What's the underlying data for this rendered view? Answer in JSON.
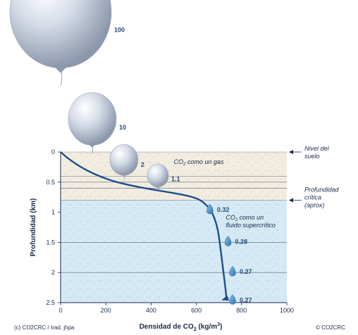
{
  "chart_data": {
    "type": "line",
    "xlabel_main": "Densidad de CO",
    "xlabel_sub": "2",
    "xlabel_tail": " (kg/m",
    "xlabel_sup": "3",
    "xlabel_end": ")",
    "ylabel": "Profundidad (km)",
    "xlim": [
      0,
      1000
    ],
    "ylim": [
      0,
      2.5
    ],
    "x_ticks": [
      "0",
      "200",
      "400",
      "600",
      "800",
      "1000"
    ],
    "y_ticks": [
      "0",
      "0.5",
      "1",
      "1.5",
      "2",
      "2.5"
    ],
    "curve": {
      "x": [
        0,
        30,
        100,
        200,
        300,
        400,
        500,
        580,
        620,
        650,
        670,
        690,
        700,
        710,
        720,
        730,
        735
      ],
      "y": [
        0,
        0.1,
        0.28,
        0.45,
        0.55,
        0.62,
        0.68,
        0.74,
        0.8,
        0.9,
        1.0,
        1.2,
        1.4,
        1.7,
        2.0,
        2.3,
        2.5
      ]
    },
    "balloons": [
      {
        "label": "100",
        "x": 0,
        "y": -2.32,
        "size": 72
      },
      {
        "label": "10",
        "x": 140,
        "y": -0.55,
        "size": 34
      },
      {
        "label": "2",
        "x": 280,
        "y": 0.13,
        "size": 20
      },
      {
        "label": "1.1",
        "x": 430,
        "y": 0.39,
        "size": 15
      }
    ],
    "drops": [
      {
        "label": "0.32",
        "x": 660,
        "y": 0.97
      },
      {
        "label": "0.28",
        "x": 740,
        "y": 1.5
      },
      {
        "label": "0.27",
        "x": 760,
        "y": 2.0
      },
      {
        "label": "0.27",
        "x": 760,
        "y": 2.47
      }
    ],
    "gridlines_y": [
      0.4,
      0.5,
      0.6,
      1.5,
      2.0,
      2.5
    ],
    "soil_level_depth": 0,
    "critical_depth": 0.8
  },
  "annotations": {
    "soil_level": [
      "Nivel del",
      "suelo"
    ],
    "critical_depth": [
      "Profundidad",
      "crítica",
      "(aprox)"
    ],
    "gas_phase": {
      "main": "CO",
      "sub": "2",
      "tail": " como un gas"
    },
    "supercritical": {
      "main": "CO",
      "sub": "2",
      "tail": " como un",
      "line2": "fluido supercrítico"
    }
  },
  "credits": {
    "left": "(c) CO2CRC / trad. jhpa",
    "right": "© CO2CRC"
  },
  "colors": {
    "soil_fill": "#f3ede0",
    "water_fill": "#d5eaf5",
    "curve": "#1c4f8c",
    "label_blue": "#24497a",
    "drop_fill": "#3f8bc4"
  }
}
